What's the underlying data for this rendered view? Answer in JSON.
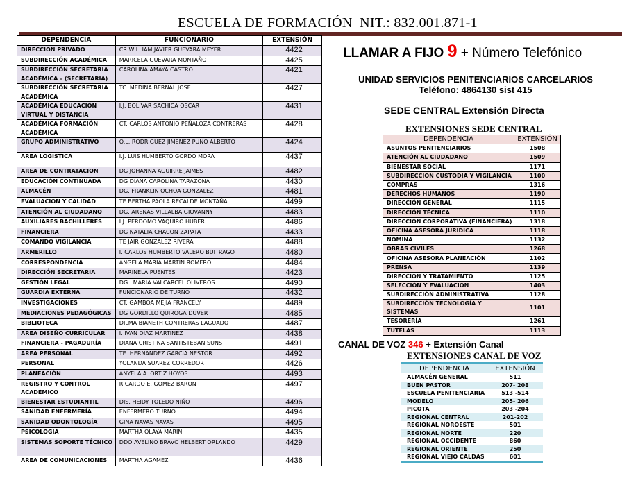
{
  "header": {
    "title": "ESCUELA DE FORMACIÓN  NIT.: 832.001.871-1",
    "accent": "#632523"
  },
  "main_table": {
    "headers": [
      "DEPENDENCIA",
      "FUNCIONARIO",
      "EXTENSIÓN"
    ],
    "rows": [
      [
        "DIRECCION PRIVADO",
        "CR  WILLIAM JAVIER GUEVARA MEYER",
        "4422"
      ],
      [
        "SUBDIRECCIÓN ACADÉMICA",
        "MARICELA GUEVARA MONTAÑO",
        "4425"
      ],
      [
        "SUBDIRECCIÓN SECRETARIA ACADÉMICA – (SECRETARIA)",
        "CAROLINA AMAYA CASTRO",
        "4421"
      ],
      [
        "SUBDIRECCIÓN SECRETARIA ACADÉMICA",
        "TC.  MEDINA BERNAL JOSE",
        "4427"
      ],
      [
        "ACADÉMICA EDUCACIÓN VIRTUAL Y DISTANCIA",
        "I.J.  BOLIVAR SACHICA OSCAR",
        "4431"
      ],
      [
        "ACADÉMICA FORMACIÓN ACADÉMICA",
        "CT. CARLOS ANTONIO  PEÑALOZA CONTRERAS",
        "4428"
      ],
      [
        "GRUPO ADMINISTRATIVO",
        "O.L. RODRIGUEZ JIMENEZ PUNO ALBERTO",
        "4424"
      ],
      [
        "AREA LOGISTICA",
        "I.J. LUIS HUMBERTO GORDO MORA",
        "4437"
      ],
      [
        "AREA DE CONTRATACION",
        "DG JOHANNA AGUIRRE JAIMES",
        "4482"
      ],
      [
        "EDUCACIÓN CONTINUADA",
        "DG DIANA CAROLINA TARAZONA",
        "4430"
      ],
      [
        "ALMACÉN",
        "DG. FRANKLIN OCHOA GONZALEZ",
        "4481"
      ],
      [
        "EVALUACION Y CALIDAD",
        "TE BERTHA PAOLA RECALDE MONTAÑA",
        "4499"
      ],
      [
        "ATENCIÓN AL CIUDADANO",
        "DG. ARENAS VILLALBA GIOVANNY",
        "4483"
      ],
      [
        "AUXILIARES BACHILLERES",
        "I.J. PERDOMO VAQUIRO HUBER",
        "4486"
      ],
      [
        "FINANCIERA",
        "DG NATALIA CHACON ZAPATA",
        "4433"
      ],
      [
        "COMANDO VIGILANCIA",
        "TE JAIR GONZALEZ RIVERA",
        "4488"
      ],
      [
        "ARMERILLO",
        "I. CARLOS HUMBERTO VALERO BUITRAGO",
        "4480"
      ],
      [
        "CORRESPONDENCIA",
        "ANGELA  MARIA MARTIN ROMERO",
        "4484"
      ],
      [
        "DIRECCIÓN SECRETARIA",
        "MARINELA PUENTES",
        "4423"
      ],
      [
        "GESTIÓN LEGAL",
        "DG . MARIA VALCARCEL OLIVEROS",
        "4490"
      ],
      [
        "GUARDIA EXTERNA",
        "FUNCIONARIO DE TURNO",
        "4432"
      ],
      [
        "INVESTIGACIONES",
        "CT. GAMBOA MEJIA FRANCELY",
        "4489"
      ],
      [
        "MEDIACIONES PEDAGÓGICAS",
        "DG GORDILLO QUIROGA DUVER",
        "4485"
      ],
      [
        "BIBLIOTECA",
        "DILMA BIANETH CONTRERAS LAGUADO",
        "4487"
      ],
      [
        "AREA DISEÑO CURRICULAR",
        "I. IVAN DIAZ MARTINEZ",
        "4438"
      ],
      [
        "FINANCIERA - PAGADURÍA",
        "DIANA CRISTINA SANTISTEBAN SUNS",
        "4491"
      ],
      [
        "AREA PERSONAL",
        "TE. HERNANDEZ GARCIA NESTOR",
        "4492"
      ],
      [
        "PERSONAL",
        "YOLANDA SUAREZ CORREDOR",
        "4426"
      ],
      [
        "PLANEACIÓN",
        "ANYELA A. ORTIZ HOYOS",
        "4493"
      ],
      [
        "REGISTRO Y CONTROL ACADÉMICO",
        "RICARDO E. GOMEZ BARON",
        "4497"
      ],
      [
        "BIENESTAR ESTUDIANTIL",
        "DIS. HEIDY TOLEDO NIÑO",
        "4496"
      ],
      [
        "SANIDAD ENFERMERÍA",
        "ENFERMERO TURNO",
        "4494"
      ],
      [
        "SANIDAD ODONTOLOGÍA",
        "GINA NAVAS NAVAS",
        "4495"
      ],
      [
        "PSICOLOGIA",
        "MARTHA OLAYA MARIN",
        "4435"
      ],
      [
        "SISTEMAS   SOPORTE TÉCNICO",
        "DDO AVELINO BRAVO HELBERT ORLANDO",
        "4429"
      ],
      [
        "AREA DE COMUNICACIONES",
        "MARTHA AGAMEZ",
        "4436"
      ]
    ]
  },
  "fijo": {
    "prefix": "LLAMAR A FIJO ",
    "number": "9",
    "suffix": " + Número Telefónico"
  },
  "usp": {
    "name": "UNIDAD SERVICIOS PENITENCIARIOS CARCELARIOS",
    "phone": "Teléfono: 4864130  sist 415"
  },
  "sede": {
    "heading": "SEDE CENTRAL Extensión Directa",
    "title": "EXTENSIONES SEDE CENTRAL",
    "headers": [
      "DEPENDENCIA",
      "EXTENSIÓN"
    ],
    "rows": [
      [
        "ASUNTOS PENITENCIARIOS",
        "1508"
      ],
      [
        "ATENCIÓN AL CIUDADANO",
        "1509"
      ],
      [
        "BIENESTAR SOCIAL",
        "1171"
      ],
      [
        "SUBDIRECCION CUSTODIA Y VIGILANCIA",
        "1100"
      ],
      [
        "COMPRAS",
        "1316"
      ],
      [
        "DERECHOS HUMANOS",
        "1190"
      ],
      [
        "DIRECCIÓN GENERAL",
        "1115"
      ],
      [
        "DIRECCIÓN TÉCNICA",
        "1110"
      ],
      [
        "DIRECCION CORPORATIVA (FINANCIERA)",
        "1318"
      ],
      [
        "OFICINA ASESORA JURIDICA",
        "1118"
      ],
      [
        "NOMINA",
        "1132"
      ],
      [
        "OBRAS CIVILES",
        "1268"
      ],
      [
        "OFICINA ASESORA PLANEACIÓN",
        "1102"
      ],
      [
        "PRENSA",
        "1139"
      ],
      [
        "DIRECCION Y TRATAMIENTO",
        "1125"
      ],
      [
        "SELECCIÓN Y EVALUACION",
        "1403"
      ],
      [
        "SUBDIRECCIÓN ADMINISTRATIVA",
        "1128"
      ],
      [
        "SUBDIRECCIÓN TECNOLOGÍA Y SISTEMAS",
        "1101"
      ],
      [
        "TESORERÍA",
        "1261"
      ],
      [
        "TUTELAS",
        "1113"
      ]
    ]
  },
  "canal": {
    "prefix": "CANAL DE VOZ ",
    "number": "346",
    "suffix": " + Extensión Canal",
    "title": "EXTENSIONES CANAL DE VOZ",
    "headers": [
      "DEPENDENCIA",
      "EXTENSIÓN"
    ],
    "rows": [
      [
        "ALMACÉN GENERAL",
        "511"
      ],
      [
        "BUEN PASTOR",
        "207- 208"
      ],
      [
        "ESCUELA PENITENCIARIA",
        "513 -514"
      ],
      [
        "MODELO",
        "205- 206"
      ],
      [
        "PICOTA",
        "203 -204"
      ],
      [
        "REGIONAL CENTRAL",
        "201-202"
      ],
      [
        "REGIONAL NOROESTE",
        "501"
      ],
      [
        "REGIONAL NORTE",
        "220"
      ],
      [
        "REGIONAL OCCIDENTE",
        "860"
      ],
      [
        "REGIONAL ORIENTE",
        "250"
      ],
      [
        "REGIONAL VIEJO CALDAS",
        "601"
      ]
    ]
  }
}
